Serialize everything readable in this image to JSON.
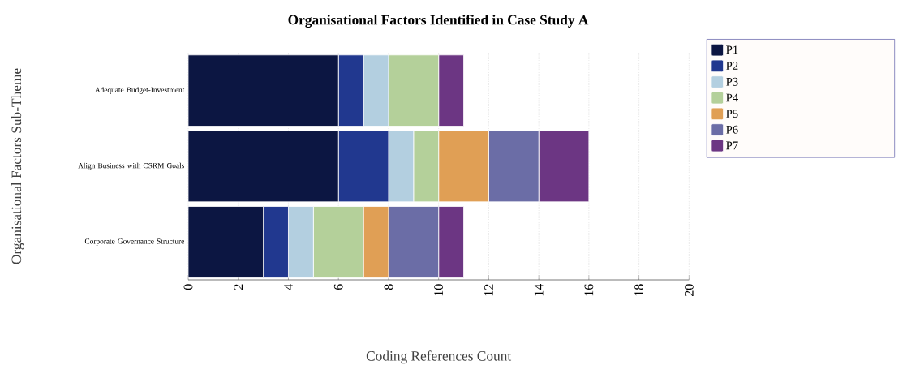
{
  "chart_data": {
    "type": "bar",
    "orientation": "horizontal",
    "stacked": true,
    "title": "Organisational Factors Identified in Case Study A",
    "xlabel": "Coding References Count",
    "ylabel": "Organisational Factors Sub-Theme",
    "categories": [
      "Adequate Budget-Investment",
      "Align Business with CSRM Goals",
      "Corporate Governance Structure"
    ],
    "series": [
      {
        "name": "P1",
        "color": "#0c1642",
        "values": [
          6,
          6,
          3
        ]
      },
      {
        "name": "P2",
        "color": "#21388f",
        "values": [
          1,
          2,
          1
        ]
      },
      {
        "name": "P3",
        "color": "#b3cfe0",
        "values": [
          1,
          1,
          1
        ]
      },
      {
        "name": "P4",
        "color": "#b4d09a",
        "values": [
          2,
          1,
          2
        ]
      },
      {
        "name": "P5",
        "color": "#e09f55",
        "values": [
          0,
          2,
          1
        ]
      },
      {
        "name": "P6",
        "color": "#6b6da6",
        "values": [
          0,
          2,
          2
        ]
      },
      {
        "name": "P7",
        "color": "#6c3683",
        "values": [
          1,
          2,
          1
        ]
      }
    ],
    "xlim": [
      0,
      20
    ],
    "xticks": [
      0,
      2,
      4,
      6,
      8,
      10,
      12,
      14,
      16,
      18,
      20
    ],
    "grid": "x",
    "legend": "right"
  }
}
